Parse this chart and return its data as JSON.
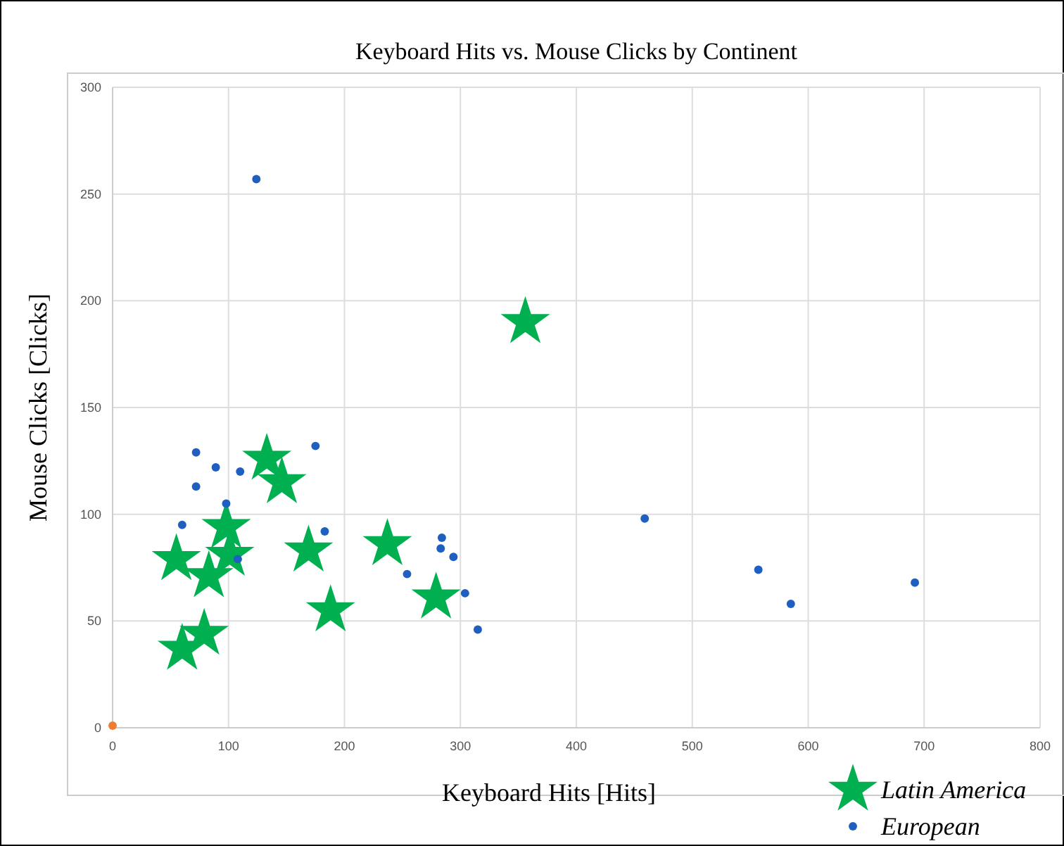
{
  "chart_data": {
    "type": "scatter",
    "title": "Keyboard Hits vs. Mouse Clicks by Continent",
    "xlabel": "Keyboard Hits [Hits]",
    "ylabel": "Mouse Clicks [Clicks]",
    "xlim": [
      0,
      800
    ],
    "xticks": [
      0,
      100,
      200,
      300,
      400,
      500,
      600,
      700,
      800
    ],
    "ylim": [
      0,
      300
    ],
    "yticks": [
      0,
      50,
      100,
      150,
      200,
      250,
      300
    ],
    "grid": true,
    "legend": "bottom right",
    "series": [
      {
        "name": "Latin America",
        "color": "#00b050",
        "marker": "star",
        "x": [
          55,
          98,
          101,
          83,
          79,
          60,
          133,
          146,
          169,
          188,
          237,
          279,
          356
        ],
        "values": [
          79,
          94,
          81,
          71,
          44,
          37,
          126,
          115,
          83,
          55,
          86,
          61,
          190
        ]
      },
      {
        "name": "European",
        "color": "#1f5fbf",
        "marker": "circle",
        "x": [
          124,
          72,
          72,
          89,
          110,
          98,
          60,
          175,
          183,
          108,
          254,
          284,
          283,
          294,
          304,
          315,
          459,
          557,
          585,
          692
        ],
        "values": [
          257,
          129,
          113,
          122,
          120,
          105,
          95,
          132,
          92,
          79,
          72,
          89,
          84,
          80,
          63,
          46,
          98,
          74,
          58,
          68
        ]
      },
      {
        "color": "#ed7d31",
        "marker": "circle",
        "x": [
          0
        ],
        "values": [
          1
        ]
      }
    ]
  }
}
